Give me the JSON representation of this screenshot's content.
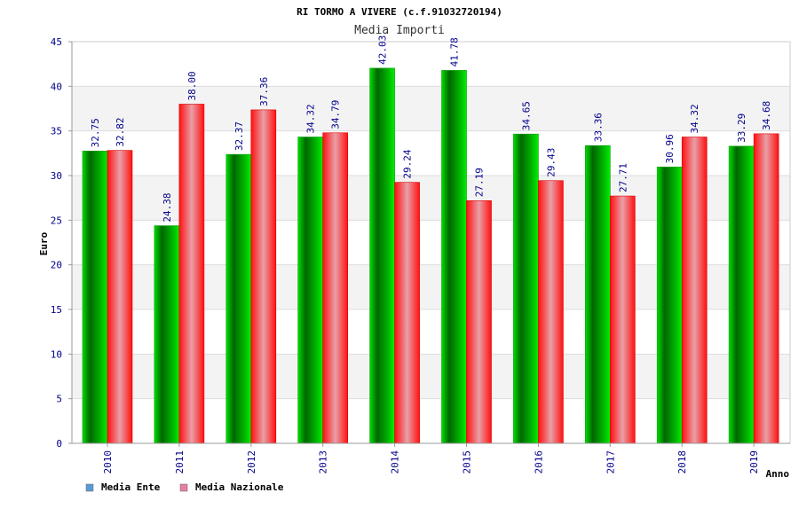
{
  "chart_data": {
    "type": "bar",
    "title": "RI TORMO A VIVERE (c.f.91032720194)",
    "subtitle": "Media Importi",
    "xlabel": "Anno",
    "ylabel": "Euro",
    "ylim": [
      0,
      45
    ],
    "yticks": [
      0,
      5,
      10,
      15,
      20,
      25,
      30,
      35,
      40,
      45
    ],
    "grid": true,
    "legend_position": "bottom-left",
    "categories": [
      "2010",
      "2011",
      "2012",
      "2013",
      "2014",
      "2015",
      "2016",
      "2017",
      "2018",
      "2019"
    ],
    "series": [
      {
        "name": "Media Ente",
        "values": [
          32.75,
          24.38,
          32.37,
          34.32,
          42.03,
          41.78,
          34.65,
          33.36,
          30.96,
          33.29
        ],
        "labels": [
          "32.75",
          "24.38",
          "32.37",
          "34.32",
          "42.03",
          "41.78",
          "34.65",
          "33.36",
          "30.96",
          "33.29"
        ],
        "color": "#00b000",
        "legend_color": "#5b9bd5"
      },
      {
        "name": "Media Nazionale",
        "values": [
          32.82,
          38.0,
          37.36,
          34.79,
          29.24,
          27.19,
          29.43,
          27.71,
          34.32,
          34.68
        ],
        "labels": [
          "32.82",
          "38.00",
          "37.36",
          "34.79",
          "29.24",
          "27.19",
          "29.43",
          "27.71",
          "34.32",
          "34.68"
        ],
        "color": "#ee0000",
        "legend_color": "#e87fa0"
      }
    ]
  }
}
